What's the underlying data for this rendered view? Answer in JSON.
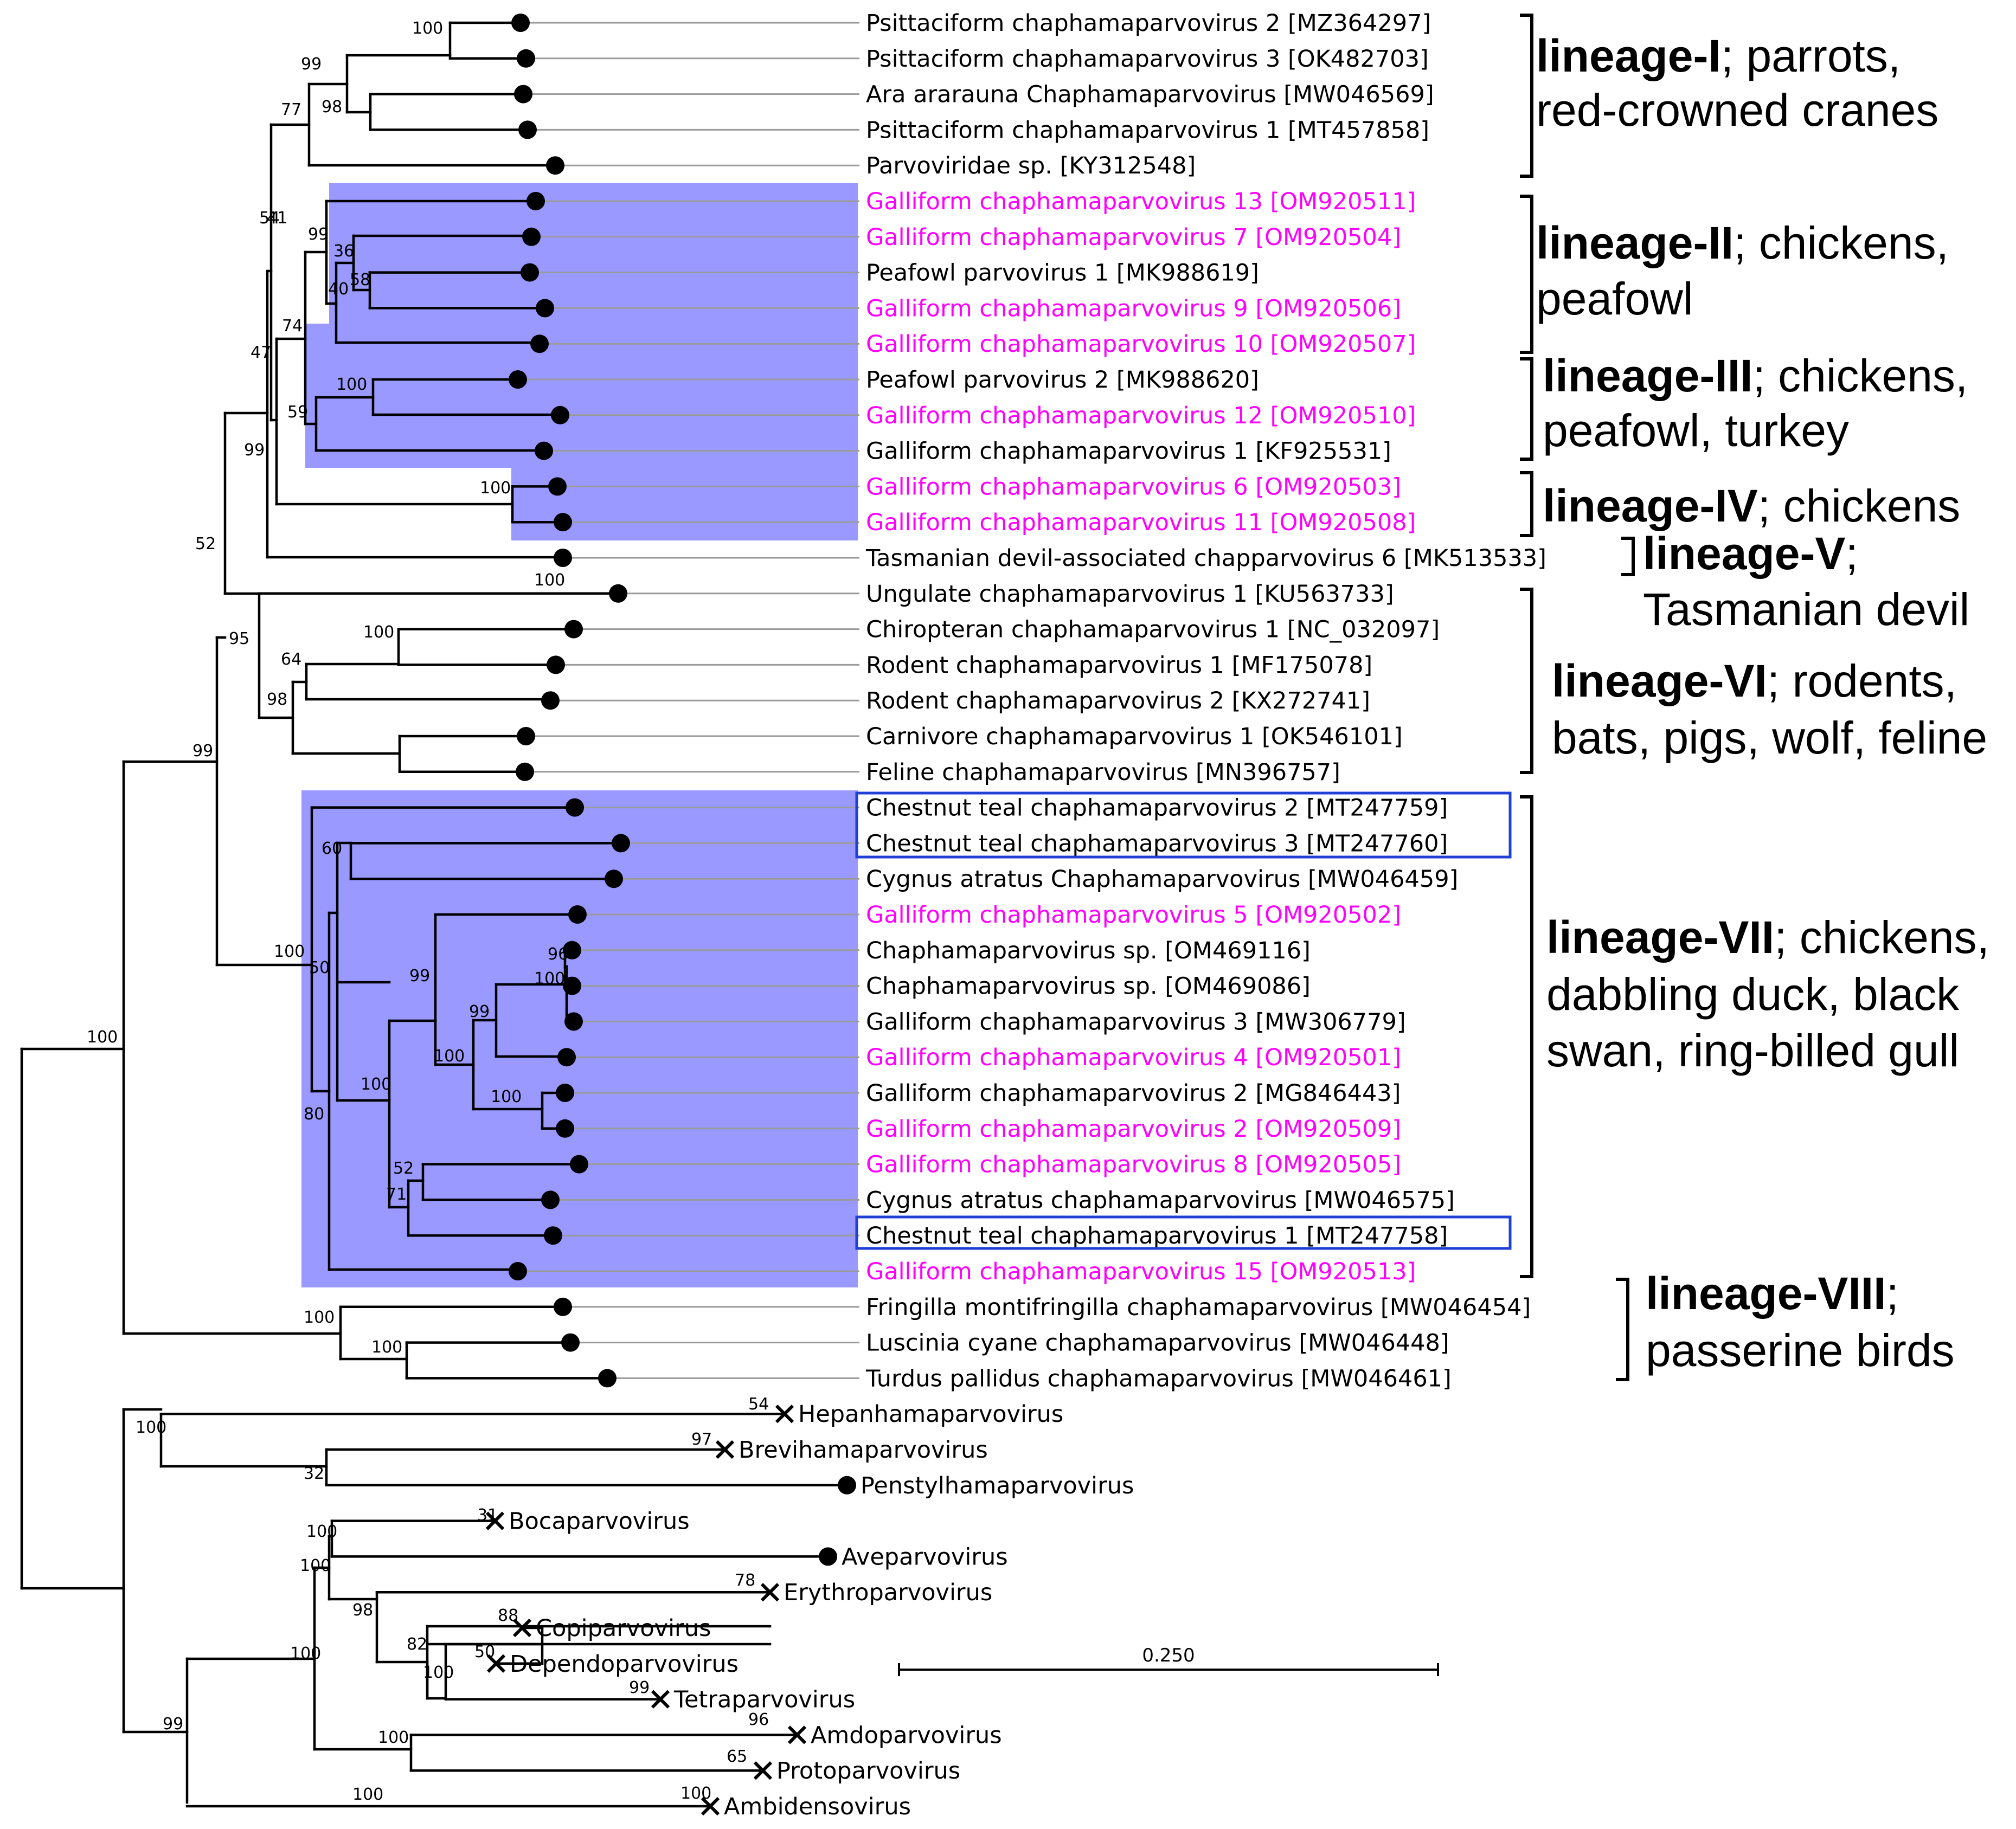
{
  "colors": {
    "highlight": "#9999ff",
    "magenta": "#ff00ff",
    "black": "#000000",
    "box": "#1f3fd6",
    "grey_line": "#9a9a9a"
  },
  "leaves": [
    {
      "label": "Psittaciform chaphamaparvovirus 2 [MZ364297]",
      "new": false,
      "marker": "dot"
    },
    {
      "label": "Psittaciform chaphamaparvovirus 3 [OK482703]",
      "new": false,
      "marker": "dot"
    },
    {
      "label": "Ara ararauna Chaphamaparvovirus [MW046569]",
      "new": false,
      "marker": "dot"
    },
    {
      "label": "Psittaciform chaphamaparvovirus 1 [MT457858]",
      "new": false,
      "marker": "dot"
    },
    {
      "label": "Parvoviridae sp. [KY312548]",
      "new": false,
      "marker": "dot"
    },
    {
      "label": "Galliform chaphamaparvovirus 13 [OM920511]",
      "new": true,
      "marker": "dot"
    },
    {
      "label": "Galliform chaphamaparvovirus 7 [OM920504]",
      "new": true,
      "marker": "dot"
    },
    {
      "label": "Peafowl parvovirus 1 [MK988619]",
      "new": false,
      "marker": "dot"
    },
    {
      "label": "Galliform chaphamaparvovirus 9 [OM920506]",
      "new": true,
      "marker": "dot"
    },
    {
      "label": "Galliform chaphamaparvovirus 10 [OM920507]",
      "new": true,
      "marker": "dot"
    },
    {
      "label": "Peafowl parvovirus 2 [MK988620]",
      "new": false,
      "marker": "dot"
    },
    {
      "label": "Galliform chaphamaparvovirus 12 [OM920510]",
      "new": true,
      "marker": "dot"
    },
    {
      "label": "Galliform chaphamaparvovirus 1 [KF925531]",
      "new": false,
      "marker": "dot"
    },
    {
      "label": "Galliform chaphamaparvovirus 6 [OM920503]",
      "new": true,
      "marker": "dot"
    },
    {
      "label": "Galliform chaphamaparvovirus 11 [OM920508]",
      "new": true,
      "marker": "dot"
    },
    {
      "label": "Tasmanian devil-associated chapparvovirus 6 [MK513533]",
      "new": false,
      "marker": "dot"
    },
    {
      "label": "Ungulate chaphamaparvovirus 1 [KU563733]",
      "new": false,
      "marker": "dot"
    },
    {
      "label": "Chiropteran chaphamaparvovirus 1 [NC_032097]",
      "new": false,
      "marker": "dot"
    },
    {
      "label": "Rodent chaphamaparvovirus 1 [MF175078]",
      "new": false,
      "marker": "dot"
    },
    {
      "label": "Rodent chaphamaparvovirus 2 [KX272741]",
      "new": false,
      "marker": "dot"
    },
    {
      "label": "Carnivore chaphamaparvovirus 1 [OK546101]",
      "new": false,
      "marker": "dot"
    },
    {
      "label": "Feline chaphamaparvovirus [MN396757]",
      "new": false,
      "marker": "dot"
    },
    {
      "label": "Chestnut teal chaphamaparvovirus 2 [MT247759]",
      "new": false,
      "marker": "dot"
    },
    {
      "label": "Chestnut teal chaphamaparvovirus 3 [MT247760]",
      "new": false,
      "marker": "dot"
    },
    {
      "label": "Cygnus atratus Chaphamaparvovirus [MW046459]",
      "new": false,
      "marker": "dot"
    },
    {
      "label": "Galliform chaphamaparvovirus 5 [OM920502]",
      "new": true,
      "marker": "dot"
    },
    {
      "label": "Chaphamaparvovirus sp. [OM469116]",
      "new": false,
      "marker": "dot"
    },
    {
      "label": "Chaphamaparvovirus sp. [OM469086]",
      "new": false,
      "marker": "dot"
    },
    {
      "label": "Galliform chaphamaparvovirus 3 [MW306779]",
      "new": false,
      "marker": "dot"
    },
    {
      "label": "Galliform chaphamaparvovirus 4 [OM920501]",
      "new": true,
      "marker": "dot"
    },
    {
      "label": "Galliform chaphamaparvovirus 2 [MG846443]",
      "new": false,
      "marker": "dot"
    },
    {
      "label": "Galliform chaphamaparvovirus 2 [OM920509]",
      "new": true,
      "marker": "dot"
    },
    {
      "label": "Galliform chaphamaparvovirus 8 [OM920505]",
      "new": true,
      "marker": "dot"
    },
    {
      "label": "Cygnus atratus chaphamaparvovirus [MW046575]",
      "new": false,
      "marker": "dot"
    },
    {
      "label": "Chestnut teal chaphamaparvovirus 1 [MT247758]",
      "new": false,
      "marker": "dot"
    },
    {
      "label": "Galliform chaphamaparvovirus 15 [OM920513]",
      "new": true,
      "marker": "dot"
    },
    {
      "label": "Fringilla montifringilla chaphamaparvovirus [MW046454]",
      "new": false,
      "marker": "dot"
    },
    {
      "label": "Luscinia cyane chaphamaparvovirus [MW046448]",
      "new": false,
      "marker": "dot"
    },
    {
      "label": "Turdus pallidus chaphamaparvovirus [MW046461]",
      "new": false,
      "marker": "dot"
    },
    {
      "label": "Hepanhamaparvovirus",
      "new": false,
      "marker": "cross"
    },
    {
      "label": "Brevihamaparvovirus",
      "new": false,
      "marker": "cross"
    },
    {
      "label": "Penstylhamaparvovirus",
      "new": false,
      "marker": "dot"
    },
    {
      "label": "Bocaparvovirus",
      "new": false,
      "marker": "cross"
    },
    {
      "label": "Aveparvovirus",
      "new": false,
      "marker": "dot"
    },
    {
      "label": "Erythroparvovirus",
      "new": false,
      "marker": "cross"
    },
    {
      "label": "Copiparvovirus",
      "new": false,
      "marker": "cross"
    },
    {
      "label": "Dependoparvovirus",
      "new": false,
      "marker": "cross"
    },
    {
      "label": "Tetraparvovirus",
      "new": false,
      "marker": "cross"
    },
    {
      "label": "Amdoparvovirus",
      "new": false,
      "marker": "cross"
    },
    {
      "label": "Protoparvovirus",
      "new": false,
      "marker": "cross"
    },
    {
      "label": "Ambidensovirus",
      "new": false,
      "marker": "cross"
    }
  ],
  "bootstrap": [
    "100",
    "99",
    "98",
    "77",
    "54",
    "41",
    "99",
    "36",
    "58",
    "40",
    "74",
    "100",
    "59",
    "100",
    "47",
    "99",
    "52",
    "100",
    "95",
    "64",
    "98",
    "100",
    "60",
    "100",
    "50",
    "99",
    "96",
    "100",
    "99",
    "100",
    "100",
    "100",
    "52",
    "71",
    "80",
    "99",
    "100",
    "100",
    "100",
    "54",
    "100",
    "97",
    "32",
    "100",
    "31",
    "100",
    "78",
    "98",
    "88",
    "82",
    "50",
    "100",
    "99",
    "100",
    "96",
    "100",
    "65",
    "99",
    "100",
    "100"
  ],
  "lineages": [
    {
      "name": "lineage-I",
      "desc1": "; parrots,",
      "desc2": "red-crowned cranes"
    },
    {
      "name": "lineage-II",
      "desc1": "; chickens,",
      "desc2": "peafowl"
    },
    {
      "name": "lineage-III",
      "desc1": "; chickens,",
      "desc2": "peafowl, turkey"
    },
    {
      "name": "lineage-IV",
      "desc1": "; chickens",
      "desc2": ""
    },
    {
      "name": "lineage-V",
      "desc1": ";",
      "desc2": "Tasmanian devil"
    },
    {
      "name": "lineage-VI",
      "desc1": "; rodents,",
      "desc2": "bats, pigs, wolf, feline"
    },
    {
      "name": "lineage-VII",
      "desc1": "; chickens,",
      "desc2": "dabbling duck, black",
      "desc3": "swan, ring-billed gull"
    },
    {
      "name": "lineage-VIII",
      "desc1": ";",
      "desc2": "passerine birds"
    }
  ],
  "scale": {
    "label": "0.250"
  }
}
